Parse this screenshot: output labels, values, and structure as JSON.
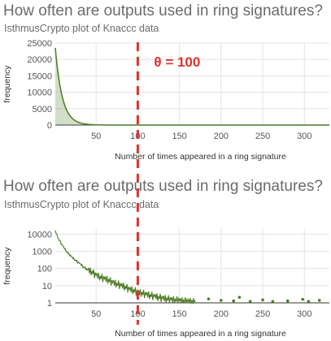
{
  "chart_data": [
    {
      "type": "area",
      "title": "How often are outputs used in ring signatures?",
      "subtitle": "IsthmusCrypto plot of Knaccc data",
      "xlabel": "Number of times appeared in a ring signature",
      "ylabel": "frequency",
      "xlim": [
        1,
        330
      ],
      "ylim": [
        0,
        25000
      ],
      "x_ticks": [
        50,
        100,
        150,
        200,
        250,
        300
      ],
      "y_ticks": [
        0,
        5000,
        10000,
        15000,
        20000,
        25000
      ],
      "y_tick_labels": [
        "0",
        "5000",
        "10000",
        "15000",
        "20000",
        "25000"
      ],
      "grid": true,
      "series_color": "#4c7a22",
      "decay_model": {
        "start_x": 1,
        "start_y": 23500,
        "decay_rate_per_x": 0.12
      },
      "annotation": {
        "text": "θ = 100",
        "x": 100,
        "color": "#e0332f",
        "style": "dashed vertical line"
      }
    },
    {
      "type": "line",
      "title": "How often are outputs used in ring signatures?",
      "subtitle": "IsthmusCrypto plot of Knaccc data",
      "xlabel": "Number of times appeared in a ring signature",
      "ylabel": "frequency",
      "log_y": true,
      "xlim": [
        1,
        330
      ],
      "ylim": [
        1,
        20000
      ],
      "x_ticks": [
        50,
        100,
        150,
        200,
        250,
        300
      ],
      "y_ticks": [
        1,
        10,
        100,
        1000,
        10000
      ],
      "y_tick_labels": [
        "1",
        "10",
        "100",
        "1000",
        "10000"
      ],
      "grid": true,
      "series_color": "#4c7a22",
      "line_x": [
        1,
        5,
        10,
        15,
        20,
        25,
        30,
        35,
        40,
        45,
        50,
        55,
        60,
        65,
        70,
        75,
        80,
        85,
        90,
        95,
        100,
        105,
        110,
        115,
        120,
        125,
        130,
        135,
        140,
        145,
        150,
        155,
        160,
        165,
        170
      ],
      "line_y": [
        15000,
        5000,
        2000,
        900,
        500,
        300,
        200,
        120,
        80,
        60,
        40,
        30,
        25,
        20,
        15,
        12,
        10,
        8,
        6,
        5,
        4,
        3.5,
        3,
        2.6,
        2.3,
        2,
        1.8,
        1.6,
        1.5,
        1.4,
        1.3,
        1.2,
        1.15,
        1.1,
        1
      ],
      "scatter_x": [
        185,
        200,
        215,
        222,
        235,
        250,
        262,
        280,
        298,
        305,
        318
      ],
      "scatter_y": [
        1.7,
        1.4,
        1.3,
        2.1,
        1.2,
        1.5,
        1.2,
        1.3,
        1.6,
        1.2,
        1.4
      ],
      "annotation": {
        "x": 100,
        "color": "#e0332f",
        "style": "dashed vertical line"
      }
    }
  ]
}
